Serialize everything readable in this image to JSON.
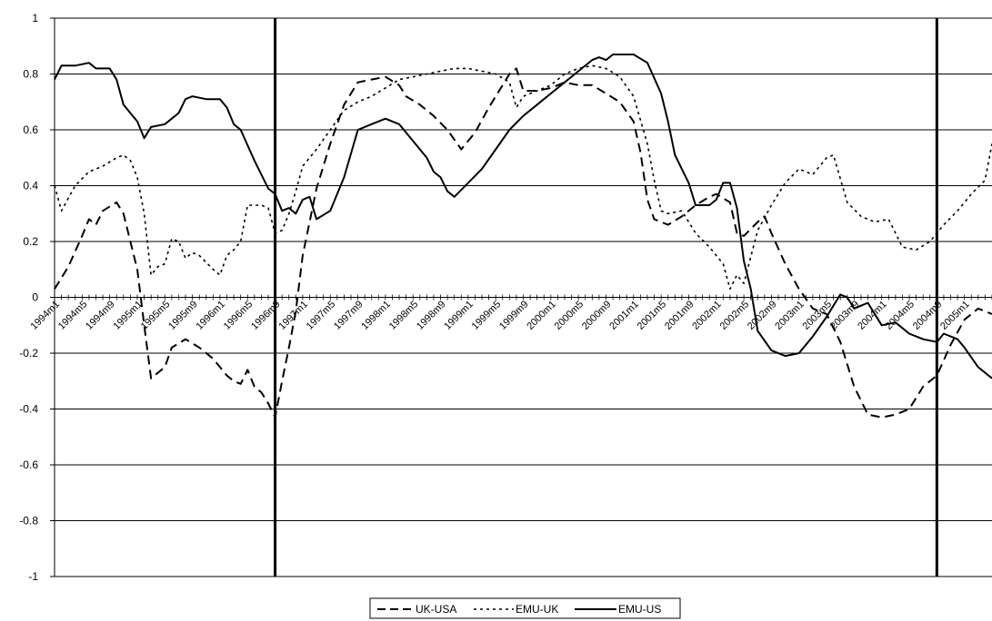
{
  "chart_data": {
    "type": "line",
    "title": "",
    "xlabel": "",
    "ylabel": "",
    "ylim": [
      -1,
      1
    ],
    "yticks": [
      1,
      0.8,
      0.6,
      0.4,
      0.2,
      0,
      -0.2,
      -0.4,
      -0.6,
      -0.8,
      -1
    ],
    "ytick_labels": [
      "1",
      "0.8",
      "0.6",
      "0.4",
      "0.2",
      "0",
      "-0.2",
      "-0.4",
      "-0.6",
      "-0.8",
      "-1"
    ],
    "grid": "horizontal",
    "legend_position": "bottom-center",
    "x_range": [
      "1994m1",
      "2005m5"
    ],
    "x_tick_labels": [
      "1994m1",
      "1994m5",
      "1994m9",
      "1995m1",
      "1995m5",
      "1995m9",
      "1996m1",
      "1996m5",
      "1996m9",
      "1997m1",
      "1997m5",
      "1997m9",
      "1998m1",
      "1998m5",
      "1998m9",
      "1999m1",
      "1999m5",
      "1999m9",
      "2000m1",
      "2000m5",
      "2000m9",
      "2001m1",
      "2001m5",
      "2001m9",
      "2002m1",
      "2002m5",
      "2002m9",
      "2003m1",
      "2003m5",
      "2003m9",
      "2004m1",
      "2004m5",
      "2004m9",
      "2005m1"
    ],
    "vertical_markers": [
      "1996m9",
      "2004m9"
    ],
    "series": [
      {
        "name": "UK-USA",
        "style": "dashed",
        "color": "#000000",
        "points": [
          [
            "1994m1",
            0.03
          ],
          [
            "1994m3",
            0.11
          ],
          [
            "1994m5",
            0.22
          ],
          [
            "1994m6",
            0.28
          ],
          [
            "1994m7",
            0.26
          ],
          [
            "1994m8",
            0.31
          ],
          [
            "1994m10",
            0.34
          ],
          [
            "1994m11",
            0.3
          ],
          [
            "1995m1",
            0.1
          ],
          [
            "1995m2",
            -0.1
          ],
          [
            "1995m3",
            -0.29
          ],
          [
            "1995m5",
            -0.25
          ],
          [
            "1995m6",
            -0.18
          ],
          [
            "1995m8",
            -0.15
          ],
          [
            "1995m10",
            -0.18
          ],
          [
            "1995m12",
            -0.22
          ],
          [
            "1996m2",
            -0.28
          ],
          [
            "1996m3",
            -0.3
          ],
          [
            "1996m4",
            -0.31
          ],
          [
            "1996m5",
            -0.26
          ],
          [
            "1996m6",
            -0.32
          ],
          [
            "1996m7",
            -0.34
          ],
          [
            "1996m8",
            -0.38
          ],
          [
            "1996m9",
            -0.43
          ],
          [
            "1996m10",
            -0.3
          ],
          [
            "1996m11",
            -0.18
          ],
          [
            "1996m12",
            -0.05
          ],
          [
            "1997m1",
            0.15
          ],
          [
            "1997m3",
            0.39
          ],
          [
            "1997m5",
            0.55
          ],
          [
            "1997m7",
            0.69
          ],
          [
            "1997m9",
            0.77
          ],
          [
            "1997m11",
            0.78
          ],
          [
            "1998m1",
            0.79
          ],
          [
            "1998m3",
            0.76
          ],
          [
            "1998m4",
            0.72
          ],
          [
            "1998m6",
            0.69
          ],
          [
            "1998m8",
            0.65
          ],
          [
            "1998m10",
            0.6
          ],
          [
            "1998m12",
            0.53
          ],
          [
            "1999m2",
            0.59
          ],
          [
            "1999m4",
            0.68
          ],
          [
            "1999m6",
            0.76
          ],
          [
            "1999m7",
            0.8
          ],
          [
            "1999m8",
            0.82
          ],
          [
            "1999m9",
            0.74
          ],
          [
            "1999m11",
            0.74
          ],
          [
            "2000m1",
            0.75
          ],
          [
            "2000m3",
            0.77
          ],
          [
            "2000m5",
            0.76
          ],
          [
            "2000m7",
            0.76
          ],
          [
            "2000m9",
            0.73
          ],
          [
            "2000m11",
            0.7
          ],
          [
            "2001m1",
            0.63
          ],
          [
            "2001m2",
            0.52
          ],
          [
            "2001m3",
            0.35
          ],
          [
            "2001m4",
            0.28
          ],
          [
            "2001m6",
            0.26
          ],
          [
            "2001m8",
            0.29
          ],
          [
            "2001m10",
            0.33
          ],
          [
            "2001m12",
            0.36
          ],
          [
            "2002m1",
            0.37
          ],
          [
            "2002m3",
            0.34
          ],
          [
            "2002m4",
            0.23
          ],
          [
            "2002m5",
            0.22
          ],
          [
            "2002m7",
            0.27
          ],
          [
            "2002m8",
            0.29
          ],
          [
            "2002m9",
            0.23
          ],
          [
            "2002m11",
            0.12
          ],
          [
            "2003m1",
            0.03
          ],
          [
            "2003m3",
            -0.04
          ],
          [
            "2003m5",
            -0.06
          ],
          [
            "2003m7",
            -0.16
          ],
          [
            "2003m9",
            -0.32
          ],
          [
            "2003m11",
            -0.42
          ],
          [
            "2004m1",
            -0.43
          ],
          [
            "2004m3",
            -0.42
          ],
          [
            "2004m5",
            -0.4
          ],
          [
            "2004m7",
            -0.32
          ],
          [
            "2004m9",
            -0.28
          ],
          [
            "2004m11",
            -0.17
          ],
          [
            "2005m1",
            -0.08
          ],
          [
            "2005m3",
            -0.04
          ],
          [
            "2005m5",
            -0.06
          ]
        ]
      },
      {
        "name": "EMU-UK",
        "style": "dotted",
        "color": "#000000",
        "points": [
          [
            "1994m1",
            0.4
          ],
          [
            "1994m2",
            0.31
          ],
          [
            "1994m4",
            0.4
          ],
          [
            "1994m6",
            0.45
          ],
          [
            "1994m8",
            0.47
          ],
          [
            "1994m10",
            0.5
          ],
          [
            "1994m11",
            0.51
          ],
          [
            "1994m12",
            0.49
          ],
          [
            "1995m1",
            0.43
          ],
          [
            "1995m2",
            0.3
          ],
          [
            "1995m3",
            0.08
          ],
          [
            "1995m4",
            0.11
          ],
          [
            "1995m5",
            0.12
          ],
          [
            "1995m6",
            0.21
          ],
          [
            "1995m7",
            0.2
          ],
          [
            "1995m8",
            0.14
          ],
          [
            "1995m9",
            0.16
          ],
          [
            "1995m10",
            0.15
          ],
          [
            "1995m12",
            0.1
          ],
          [
            "1996m1",
            0.08
          ],
          [
            "1996m2",
            0.15
          ],
          [
            "1996m3",
            0.17
          ],
          [
            "1996m4",
            0.2
          ],
          [
            "1996m5",
            0.33
          ],
          [
            "1996m7",
            0.33
          ],
          [
            "1996m8",
            0.32
          ],
          [
            "1996m9",
            0.23
          ],
          [
            "1996m10",
            0.24
          ],
          [
            "1996m11",
            0.3
          ],
          [
            "1996m12",
            0.38
          ],
          [
            "1997m1",
            0.47
          ],
          [
            "1997m3",
            0.53
          ],
          [
            "1997m5",
            0.6
          ],
          [
            "1997m7",
            0.67
          ],
          [
            "1997m9",
            0.7
          ],
          [
            "1997m11",
            0.72
          ],
          [
            "1998m1",
            0.75
          ],
          [
            "1998m3",
            0.78
          ],
          [
            "1998m5",
            0.79
          ],
          [
            "1998m7",
            0.8
          ],
          [
            "1998m9",
            0.81
          ],
          [
            "1998m11",
            0.82
          ],
          [
            "1999m1",
            0.82
          ],
          [
            "1999m3",
            0.81
          ],
          [
            "1999m5",
            0.8
          ],
          [
            "1999m7",
            0.77
          ],
          [
            "1999m8",
            0.68
          ],
          [
            "1999m9",
            0.72
          ],
          [
            "1999m11",
            0.74
          ],
          [
            "2000m1",
            0.76
          ],
          [
            "2000m3",
            0.8
          ],
          [
            "2000m5",
            0.82
          ],
          [
            "2000m7",
            0.83
          ],
          [
            "2000m9",
            0.82
          ],
          [
            "2000m11",
            0.79
          ],
          [
            "2001m1",
            0.72
          ],
          [
            "2001m3",
            0.55
          ],
          [
            "2001m4",
            0.42
          ],
          [
            "2001m5",
            0.31
          ],
          [
            "2001m6",
            0.3
          ],
          [
            "2001m8",
            0.31
          ],
          [
            "2001m10",
            0.23
          ],
          [
            "2001m12",
            0.18
          ],
          [
            "2002m2",
            0.12
          ],
          [
            "2002m3",
            0.03
          ],
          [
            "2002m4",
            0.08
          ],
          [
            "2002m5",
            0.05
          ],
          [
            "2002m7",
            0.24
          ],
          [
            "2002m9",
            0.33
          ],
          [
            "2002m11",
            0.41
          ],
          [
            "2003m1",
            0.46
          ],
          [
            "2003m3",
            0.44
          ],
          [
            "2003m5",
            0.5
          ],
          [
            "2003m6",
            0.51
          ],
          [
            "2003m8",
            0.34
          ],
          [
            "2003m10",
            0.29
          ],
          [
            "2003m12",
            0.27
          ],
          [
            "2004m2",
            0.28
          ],
          [
            "2004m4",
            0.18
          ],
          [
            "2004m6",
            0.17
          ],
          [
            "2004m8",
            0.2
          ],
          [
            "2004m10",
            0.26
          ],
          [
            "2004m12",
            0.31
          ],
          [
            "2005m2",
            0.37
          ],
          [
            "2005m4",
            0.42
          ],
          [
            "2005m5",
            0.55
          ]
        ]
      },
      {
        "name": "EMU-US",
        "style": "solid",
        "color": "#000000",
        "points": [
          [
            "1994m1",
            0.78
          ],
          [
            "1994m2",
            0.83
          ],
          [
            "1994m4",
            0.83
          ],
          [
            "1994m6",
            0.84
          ],
          [
            "1994m7",
            0.82
          ],
          [
            "1994m9",
            0.82
          ],
          [
            "1994m10",
            0.78
          ],
          [
            "1994m11",
            0.69
          ],
          [
            "1995m1",
            0.63
          ],
          [
            "1995m2",
            0.57
          ],
          [
            "1995m3",
            0.61
          ],
          [
            "1995m5",
            0.62
          ],
          [
            "1995m7",
            0.66
          ],
          [
            "1995m8",
            0.71
          ],
          [
            "1995m9",
            0.72
          ],
          [
            "1995m11",
            0.71
          ],
          [
            "1996m1",
            0.71
          ],
          [
            "1996m2",
            0.68
          ],
          [
            "1996m3",
            0.62
          ],
          [
            "1996m4",
            0.6
          ],
          [
            "1996m6",
            0.49
          ],
          [
            "1996m8",
            0.39
          ],
          [
            "1996m9",
            0.37
          ],
          [
            "1996m10",
            0.31
          ],
          [
            "1996m11",
            0.32
          ],
          [
            "1996m12",
            0.3
          ],
          [
            "1997m1",
            0.35
          ],
          [
            "1997m2",
            0.36
          ],
          [
            "1997m3",
            0.28
          ],
          [
            "1997m5",
            0.31
          ],
          [
            "1997m7",
            0.43
          ],
          [
            "1997m9",
            0.6
          ],
          [
            "1997m11",
            0.62
          ],
          [
            "1998m1",
            0.64
          ],
          [
            "1998m3",
            0.62
          ],
          [
            "1998m5",
            0.56
          ],
          [
            "1998m7",
            0.5
          ],
          [
            "1998m8",
            0.45
          ],
          [
            "1998m9",
            0.43
          ],
          [
            "1998m10",
            0.38
          ],
          [
            "1998m11",
            0.36
          ],
          [
            "1999m1",
            0.41
          ],
          [
            "1999m3",
            0.46
          ],
          [
            "1999m5",
            0.53
          ],
          [
            "1999m7",
            0.6
          ],
          [
            "1999m9",
            0.65
          ],
          [
            "1999m11",
            0.69
          ],
          [
            "2000m1",
            0.73
          ],
          [
            "2000m3",
            0.77
          ],
          [
            "2000m5",
            0.81
          ],
          [
            "2000m7",
            0.85
          ],
          [
            "2000m8",
            0.86
          ],
          [
            "2000m9",
            0.85
          ],
          [
            "2000m10",
            0.87
          ],
          [
            "2000m12",
            0.87
          ],
          [
            "2001m1",
            0.87
          ],
          [
            "2001m3",
            0.84
          ],
          [
            "2001m5",
            0.73
          ],
          [
            "2001m6",
            0.63
          ],
          [
            "2001m7",
            0.51
          ],
          [
            "2001m9",
            0.41
          ],
          [
            "2001m10",
            0.33
          ],
          [
            "2001m12",
            0.33
          ],
          [
            "2002m1",
            0.35
          ],
          [
            "2002m2",
            0.41
          ],
          [
            "2002m3",
            0.41
          ],
          [
            "2002m4",
            0.32
          ],
          [
            "2002m5",
            0.13
          ],
          [
            "2002m6",
            0.03
          ],
          [
            "2002m7",
            -0.12
          ],
          [
            "2002m9",
            -0.19
          ],
          [
            "2002m11",
            -0.21
          ],
          [
            "2003m1",
            -0.2
          ],
          [
            "2003m3",
            -0.14
          ],
          [
            "2003m5",
            -0.07
          ],
          [
            "2003m6",
            -0.03
          ],
          [
            "2003m7",
            0.01
          ],
          [
            "2003m8",
            0.0
          ],
          [
            "2003m9",
            -0.04
          ],
          [
            "2003m11",
            -0.02
          ],
          [
            "2004m1",
            -0.1
          ],
          [
            "2004m3",
            -0.09
          ],
          [
            "2004m5",
            -0.13
          ],
          [
            "2004m7",
            -0.15
          ],
          [
            "2004m9",
            -0.16
          ],
          [
            "2004m10",
            -0.13
          ],
          [
            "2004m12",
            -0.15
          ],
          [
            "2005m1",
            -0.18
          ],
          [
            "2005m3",
            -0.25
          ],
          [
            "2005m5",
            -0.29
          ]
        ]
      }
    ]
  }
}
